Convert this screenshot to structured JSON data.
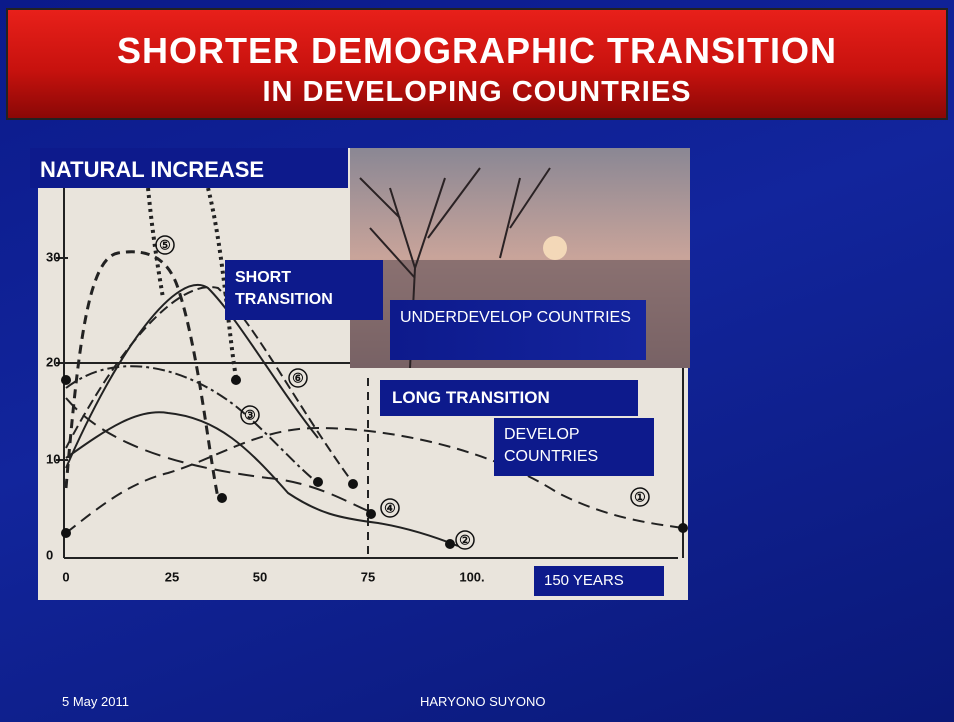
{
  "header": {
    "title": "SHORTER DEMOGRAPHIC TRANSITION",
    "subtitle": "IN DEVELOPING COUNTRIES"
  },
  "figure": {
    "label": "NATURAL INCREASE",
    "xticks": [
      "0",
      "25",
      "50",
      "75",
      "100."
    ],
    "yticks": [
      "30",
      "20",
      "10",
      "0"
    ],
    "curve_labels": [
      "⑤",
      "⑥",
      "③",
      "④",
      "②",
      "①"
    ]
  },
  "callouts": {
    "short": "SHORT TRANSITION",
    "underdevelop": "UNDERDEVELOP COUNTRIES",
    "long": "LONG TRANSITION",
    "develop": "DEVELOP COUNTRIES",
    "years": "150 YEARS"
  },
  "footer": {
    "date": "5 May 2011",
    "author": "HARYONO SUYONO"
  }
}
